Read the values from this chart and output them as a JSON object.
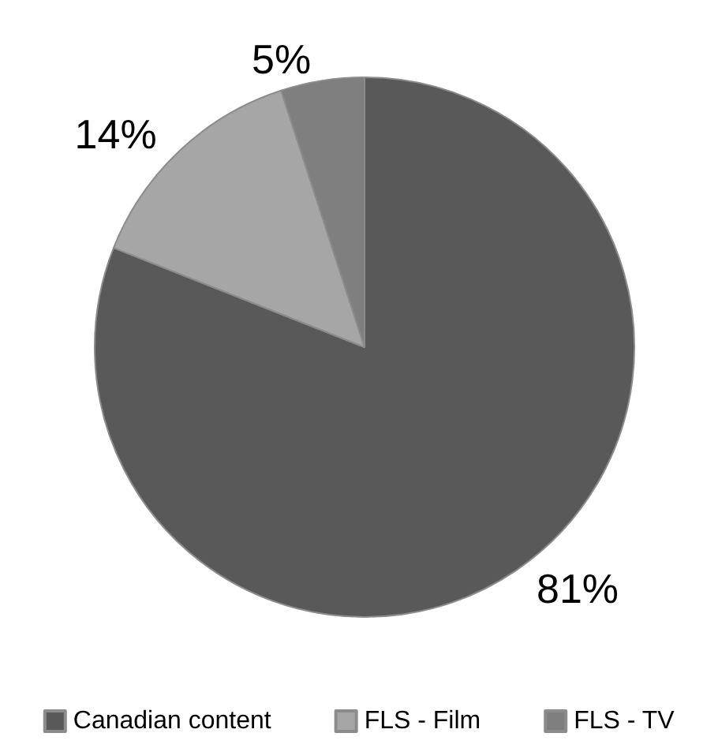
{
  "chart_data": {
    "type": "pie",
    "categories": [
      "Canadian content",
      "FLS - Film",
      "FLS - TV"
    ],
    "values": [
      81,
      14,
      5
    ],
    "value_labels": [
      "81%",
      "14%",
      "5%"
    ],
    "colors": [
      "#595959",
      "#a6a6a6",
      "#7f7f7f"
    ],
    "legend": "bottom"
  }
}
